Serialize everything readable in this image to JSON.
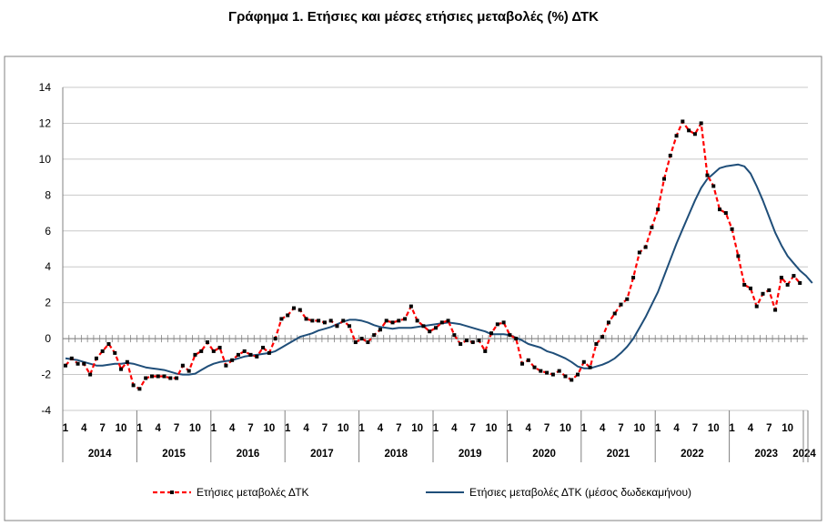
{
  "chart_data": {
    "type": "line",
    "title": "Γράφημα 1. Ετήσιες και μέσες ετήσιες μεταβολές (%) ΔΤΚ",
    "ylim": [
      -4,
      14
    ],
    "yticks": [
      -4,
      -2,
      0,
      2,
      4,
      6,
      8,
      10,
      12,
      14
    ],
    "month_tick_labels": [
      "1",
      "4",
      "7",
      "10"
    ],
    "year_labels": [
      "2014",
      "2015",
      "2016",
      "2017",
      "2018",
      "2019",
      "2020",
      "2021",
      "2022",
      "2023",
      "2024"
    ],
    "legend_position": "bottom",
    "series": [
      {
        "name": "Ετήσιες μεταβολές ΔΤΚ",
        "color": "#ff0000",
        "marker_color": "#000000",
        "style": "dashed-with-square-markers",
        "values": [
          -1.5,
          -1.1,
          -1.4,
          -1.4,
          -2.0,
          -1.1,
          -0.7,
          -0.3,
          -0.8,
          -1.7,
          -1.3,
          -2.6,
          -2.8,
          -2.2,
          -2.1,
          -2.1,
          -2.1,
          -2.2,
          -2.2,
          -1.5,
          -1.8,
          -0.9,
          -0.7,
          -0.2,
          -0.7,
          -0.5,
          -1.5,
          -1.2,
          -0.9,
          -0.7,
          -0.9,
          -1.0,
          -0.5,
          -0.8,
          0.0,
          1.1,
          1.3,
          1.7,
          1.6,
          1.1,
          1.0,
          1.0,
          0.9,
          1.0,
          0.7,
          1.0,
          0.7,
          -0.2,
          0.0,
          -0.2,
          0.2,
          0.5,
          1.0,
          0.9,
          1.0,
          1.1,
          1.8,
          1.0,
          0.7,
          0.4,
          0.6,
          0.9,
          1.0,
          0.2,
          -0.3,
          -0.1,
          -0.2,
          -0.1,
          -0.7,
          0.3,
          0.8,
          0.9,
          0.2,
          0.0,
          -1.4,
          -1.2,
          -1.6,
          -1.8,
          -1.9,
          -2.0,
          -1.8,
          -2.1,
          -2.3,
          -2.0,
          -1.3,
          -1.6,
          -0.3,
          0.1,
          0.9,
          1.4,
          1.9,
          2.2,
          3.4,
          4.8,
          5.1,
          6.2,
          7.2,
          8.9,
          10.2,
          11.3,
          12.1,
          11.6,
          11.4,
          12.0,
          9.1,
          8.5,
          7.2,
          7.0,
          6.1,
          4.6,
          3.0,
          2.8,
          1.8,
          2.5,
          2.7,
          1.6,
          3.4,
          3.0,
          3.5,
          3.1
        ]
      },
      {
        "name": "Ετήσιες μεταβολές ΔΤΚ (μέσος δωδεκαμήνου)",
        "color": "#1f4e79",
        "style": "solid",
        "values": [
          -1.1,
          -1.15,
          -1.2,
          -1.3,
          -1.4,
          -1.5,
          -1.5,
          -1.45,
          -1.4,
          -1.4,
          -1.35,
          -1.4,
          -1.5,
          -1.6,
          -1.65,
          -1.7,
          -1.75,
          -1.85,
          -1.95,
          -2.0,
          -2.0,
          -1.95,
          -1.75,
          -1.55,
          -1.4,
          -1.3,
          -1.25,
          -1.2,
          -1.1,
          -1.0,
          -0.95,
          -0.9,
          -0.85,
          -0.8,
          -0.7,
          -0.5,
          -0.3,
          -0.1,
          0.1,
          0.2,
          0.3,
          0.45,
          0.55,
          0.65,
          0.8,
          0.95,
          1.05,
          1.05,
          1.0,
          0.9,
          0.75,
          0.65,
          0.6,
          0.55,
          0.6,
          0.6,
          0.6,
          0.65,
          0.7,
          0.75,
          0.8,
          0.85,
          0.9,
          0.85,
          0.8,
          0.7,
          0.6,
          0.5,
          0.4,
          0.25,
          0.25,
          0.25,
          0.2,
          0.05,
          -0.1,
          -0.3,
          -0.4,
          -0.5,
          -0.7,
          -0.8,
          -0.95,
          -1.1,
          -1.3,
          -1.55,
          -1.65,
          -1.65,
          -1.55,
          -1.45,
          -1.3,
          -1.1,
          -0.8,
          -0.45,
          0.0,
          0.6,
          1.2,
          1.9,
          2.6,
          3.5,
          4.4,
          5.3,
          6.1,
          6.9,
          7.7,
          8.4,
          8.9,
          9.2,
          9.5,
          9.6,
          9.65,
          9.7,
          9.6,
          9.2,
          8.5,
          7.7,
          6.8,
          5.9,
          5.2,
          4.6,
          4.2,
          3.8,
          3.5,
          3.1
        ]
      }
    ]
  }
}
